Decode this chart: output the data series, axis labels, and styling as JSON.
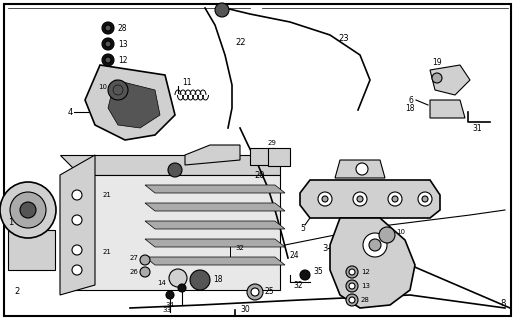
{
  "bg_color": "#ffffff",
  "line_color": "#000000",
  "fig_width": 5.16,
  "fig_height": 3.2,
  "dpi": 100,
  "gray_light": "#d0d0d0",
  "gray_mid": "#aaaaaa",
  "gray_dark": "#555555",
  "gray_fill": "#e8e8e8",
  "black": "#111111",
  "white": "#ffffff"
}
